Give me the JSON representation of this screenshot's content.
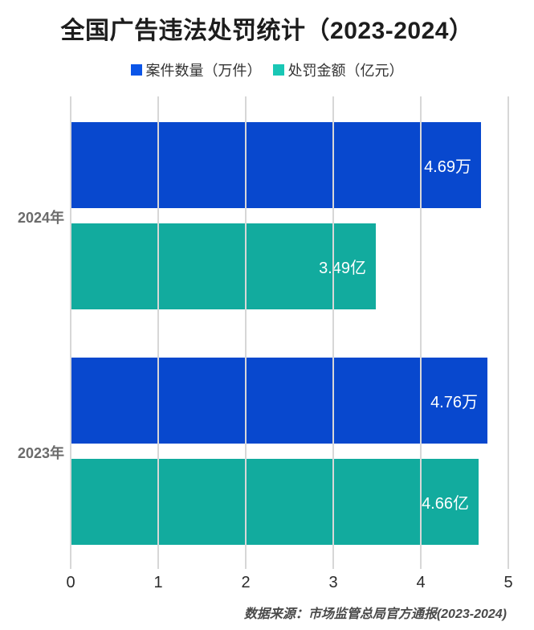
{
  "title": "全国广告违法处罚统计（2023-2024）",
  "source_note": "数据来源：市场监管总局官方通报(2023-2024)",
  "legend": {
    "items": [
      {
        "label": "案件数量（万件）",
        "swatch_color": "#0b55e8"
      },
      {
        "label": "处罚金额（亿元）",
        "swatch_color": "#19c7b5"
      }
    ]
  },
  "chart_data": {
    "type": "bar",
    "orientation": "horizontal",
    "title": "全国广告违法处罚统计（2023-2024）",
    "categories": [
      "2024年",
      "2023年"
    ],
    "series": [
      {
        "name": "案件数量（万件）",
        "color": "#0848ce",
        "values": [
          4.69,
          4.76
        ],
        "value_labels": [
          "4.69万",
          "4.76万"
        ]
      },
      {
        "name": "处罚金额（亿元）",
        "color": "#12ab9e",
        "values": [
          3.49,
          4.66
        ],
        "value_labels": [
          "3.49亿",
          "4.66亿"
        ]
      }
    ],
    "xlim": [
      0,
      5
    ],
    "xticks": [
      "0",
      "1",
      "2",
      "3",
      "4",
      "5"
    ],
    "grid": true,
    "legend_position": "top",
    "value_label_color": "#ffffff",
    "category_label_color": "#6b6b6b",
    "tick_label_color": "#2b2b2b",
    "gridline_color": "#d7d7d7",
    "annotation": "数据来源：市场监管总局官方通报(2023-2024)"
  }
}
